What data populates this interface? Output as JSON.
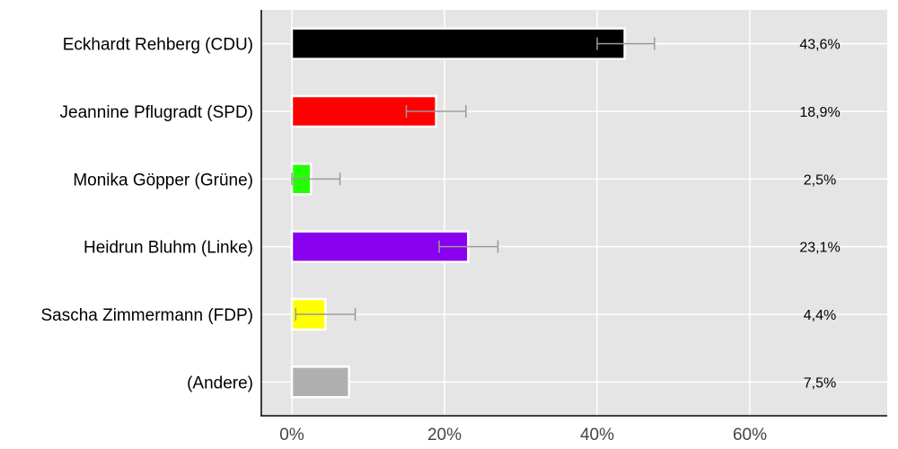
{
  "chart_data": {
    "type": "bar",
    "orientation": "horizontal",
    "categories": [
      "Eckhardt Rehberg (CDU)",
      "Jeannine Pflugradt (SPD)",
      "Monika Göpper (Grüne)",
      "Heidrun Bluhm (Linke)",
      "Sascha Zimmermann (FDP)",
      "(Andere)"
    ],
    "values": [
      43.6,
      18.9,
      2.5,
      23.1,
      4.4,
      7.5
    ],
    "value_labels": [
      "43,6%",
      "18,9%",
      "2,5%",
      "23,1%",
      "4,4%",
      "7,5%"
    ],
    "error_low": [
      40.0,
      15.0,
      0.0,
      19.3,
      0.5,
      null
    ],
    "error_high": [
      47.5,
      22.8,
      6.3,
      27.0,
      8.3,
      null
    ],
    "colors": [
      "#000000",
      "#ff0000",
      "#22ff00",
      "#8800ee",
      "#ffff00",
      "#b0b0b0"
    ],
    "xlim": [
      -4,
      78
    ],
    "xticks": [
      0,
      20,
      40,
      60
    ],
    "xtick_labels": [
      "0%",
      "20%",
      "40%",
      "60%"
    ],
    "grid": true,
    "background_color": "#e5e5e5",
    "grid_color": "#ffffff",
    "errorbar_color": "#999999"
  }
}
